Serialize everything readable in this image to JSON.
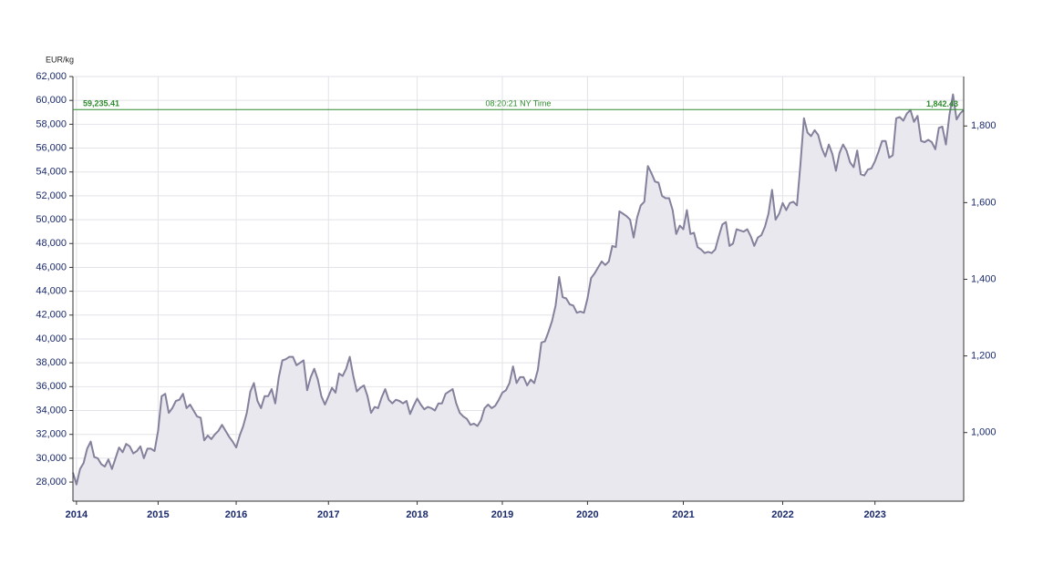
{
  "chart_data": {
    "type": "line",
    "y_axis_label": "EUR/kg",
    "annotation": "08:20:21 NY Time",
    "reference": {
      "value": 59235.41,
      "label": "59,235.41",
      "color": "#2e8b2e"
    },
    "reference_y2": {
      "value": 1842.43,
      "label": "1,842.43"
    },
    "grid": true,
    "area_color": "#e8e8ee",
    "ylim": [
      26400,
      62000
    ],
    "yticks": [
      {
        "value": 28000,
        "label": "28,000"
      },
      {
        "value": 30000,
        "label": "30,000"
      },
      {
        "value": 32000,
        "label": "32,000"
      },
      {
        "value": 34000,
        "label": "34,000"
      },
      {
        "value": 36000,
        "label": "36,000"
      },
      {
        "value": 38000,
        "label": "38,000"
      },
      {
        "value": 40000,
        "label": "40,000"
      },
      {
        "value": 42000,
        "label": "42,000"
      },
      {
        "value": 44000,
        "label": "44,000"
      },
      {
        "value": 46000,
        "label": "46,000"
      },
      {
        "value": 48000,
        "label": "48,000"
      },
      {
        "value": 50000,
        "label": "50,000"
      },
      {
        "value": 52000,
        "label": "52,000"
      },
      {
        "value": 54000,
        "label": "54,000"
      },
      {
        "value": 56000,
        "label": "56,000"
      },
      {
        "value": 58000,
        "label": "58,000"
      },
      {
        "value": 60000,
        "label": "60,000"
      },
      {
        "value": 62000,
        "label": "62,000"
      }
    ],
    "y2lim": [
      821,
      1929
    ],
    "y2ticks": [
      {
        "value": 1000,
        "label": "1,000"
      },
      {
        "value": 1200,
        "label": "1,200"
      },
      {
        "value": 1400,
        "label": "1,400"
      },
      {
        "value": 1600,
        "label": "1,600"
      },
      {
        "value": 1800,
        "label": "1,800"
      }
    ],
    "categories": [
      null,
      "2014",
      null,
      null,
      null,
      null,
      null,
      null,
      null,
      null,
      null,
      null,
      null,
      null,
      null,
      null,
      null,
      null,
      null,
      null,
      null,
      null,
      null,
      null,
      "2015",
      null,
      null,
      null,
      null,
      null,
      null,
      null,
      null,
      null,
      null,
      null,
      null,
      null,
      null,
      null,
      null,
      null,
      null,
      null,
      null,
      null,
      "2016",
      null,
      null,
      null,
      null,
      null,
      null,
      null,
      null,
      null,
      null,
      null,
      null,
      null,
      null,
      null,
      null,
      null,
      null,
      null,
      null,
      null,
      null,
      null,
      null,
      null,
      "2017",
      null,
      null,
      null,
      null,
      null,
      null,
      null,
      null,
      null,
      null,
      null,
      null,
      null,
      null,
      null,
      null,
      null,
      null,
      null,
      null,
      null,
      null,
      null,
      null,
      "2018",
      null,
      null,
      null,
      null,
      null,
      null,
      null,
      null,
      null,
      null,
      null,
      null,
      null,
      null,
      null,
      null,
      null,
      null,
      null,
      null,
      null,
      null,
      null,
      "2019",
      null,
      null,
      null,
      null,
      null,
      null,
      null,
      null,
      null,
      null,
      null,
      null,
      null,
      null,
      null,
      null,
      null,
      null,
      null,
      null,
      null,
      null,
      null,
      "2020",
      null,
      null,
      null,
      null,
      null,
      null,
      null,
      null,
      null,
      null,
      null,
      null,
      null,
      null,
      null,
      null,
      null,
      null,
      null,
      null,
      null,
      null,
      null,
      null,
      null,
      null,
      "2021",
      null,
      null,
      null,
      null,
      null,
      null,
      null,
      null,
      null,
      null,
      null,
      null,
      null,
      null,
      null,
      null,
      null,
      null,
      null,
      null,
      null,
      null,
      null,
      null,
      null,
      null,
      null,
      "2022",
      null,
      null,
      null,
      null,
      null,
      null,
      null,
      null,
      null,
      null,
      null,
      null,
      null,
      null,
      null,
      null,
      null,
      null,
      null,
      null,
      null,
      null,
      null,
      null,
      null,
      "2023",
      null,
      null,
      null,
      null,
      null,
      null,
      null,
      null,
      null,
      null,
      null,
      null,
      null,
      null,
      null,
      null,
      null,
      null,
      null,
      null,
      null,
      null,
      null,
      null,
      null
    ],
    "series": [
      {
        "color": "#84819c",
        "values": [
          28800,
          27800,
          29100,
          29600,
          30800,
          31400,
          30100,
          30000,
          29500,
          29300,
          29900,
          29100,
          30000,
          30900,
          30500,
          31200,
          31000,
          30400,
          30600,
          31000,
          30000,
          30800,
          30800,
          30600,
          32300,
          35200,
          35400,
          33800,
          34200,
          34800,
          34900,
          35400,
          34200,
          34500,
          34000,
          33500,
          33400,
          31500,
          31900,
          31600,
          32000,
          32300,
          32800,
          32300,
          31800,
          31400,
          30900,
          31900,
          32700,
          33800,
          35600,
          36300,
          34800,
          34200,
          35200,
          35200,
          35800,
          34600,
          36800,
          38200,
          38300,
          38500,
          38500,
          37800,
          38000,
          38200,
          35700,
          36800,
          37500,
          36600,
          35200,
          34500,
          35200,
          35900,
          35500,
          37100,
          36900,
          37500,
          38500,
          36900,
          35600,
          35900,
          36100,
          35200,
          33800,
          34300,
          34200,
          35100,
          35800,
          34900,
          34600,
          34900,
          34800,
          34600,
          34800,
          33700,
          34400,
          35000,
          34500,
          34100,
          34300,
          34200,
          34000,
          34600,
          34600,
          35400,
          35600,
          35800,
          34600,
          33800,
          33500,
          33300,
          32800,
          32900,
          32700,
          33200,
          34200,
          34500,
          34200,
          34400,
          34900,
          35500,
          35700,
          36300,
          37700,
          36300,
          36800,
          36800,
          36100,
          36600,
          36300,
          37400,
          39700,
          39800,
          40600,
          41500,
          42800,
          45200,
          43500,
          43400,
          42900,
          42800,
          42200,
          42300,
          42200,
          43400,
          45100,
          45500,
          46000,
          46500,
          46200,
          46500,
          47800,
          47700,
          50700,
          50500,
          50300,
          50000,
          48500,
          50200,
          51200,
          51500,
          54500,
          53900,
          53200,
          53100,
          52000,
          51800,
          51800,
          50800,
          48800,
          49500,
          49200,
          50800,
          48800,
          48900,
          47700,
          47500,
          47200,
          47300,
          47200,
          47500,
          48600,
          49600,
          49800,
          47800,
          48000,
          49200,
          49100,
          49000,
          49200,
          48600,
          47800,
          48500,
          48700,
          49400,
          50500,
          52500,
          50000,
          50500,
          51400,
          50800,
          51400,
          51500,
          51200,
          54600,
          58500,
          57300,
          57000,
          57500,
          57100,
          56000,
          55300,
          56300,
          55500,
          54100,
          55600,
          56300,
          55800,
          54800,
          54400,
          55800,
          53800,
          53700,
          54200,
          54300,
          54900,
          55700,
          56600,
          56600,
          55200,
          55400,
          58500,
          58600,
          58300,
          58900,
          59200,
          58200,
          58700,
          56600,
          56500,
          56700,
          56500,
          55900,
          57700,
          57800,
          56300,
          58800,
          60500,
          58400,
          58900,
          59200
        ]
      }
    ]
  }
}
